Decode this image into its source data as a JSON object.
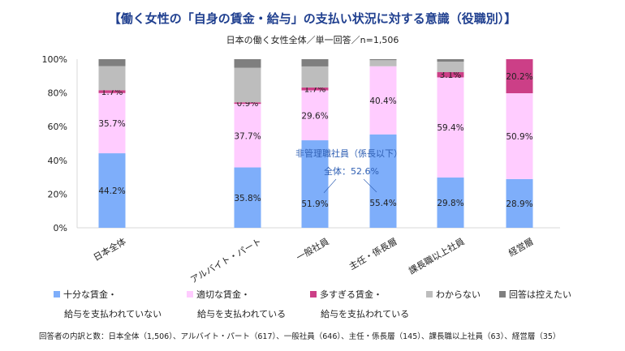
{
  "chart_data": {
    "type": "bar",
    "stacked": true,
    "title": "【働く女性の「自身の賃金・給与」の支払い状況に対する意識（役職別）】",
    "subtitle": "日本の働く女性全体／単一回答／n=1,506",
    "categories": [
      "日本全体",
      "アルバイト・パート",
      "一般社員",
      "主任・係長層",
      "課長職以上社員",
      "経営層"
    ],
    "ylim": [
      0,
      100
    ],
    "yticks": [
      "0%",
      "20%",
      "40%",
      "60%",
      "80%",
      "100%"
    ],
    "series": [
      {
        "name": "十分な賃金・給与を支払われていない",
        "legend_line1": "十分な賃金・",
        "legend_line2": "給与を支払われていない",
        "color": "#7eaefa",
        "values": [
          44.2,
          35.8,
          51.9,
          55.4,
          29.8,
          28.9
        ],
        "labels": [
          "44.2%",
          "35.8%",
          "51.9%",
          "55.4%",
          "29.8%",
          "28.9%"
        ]
      },
      {
        "name": "適切な賃金・給与を支払われている",
        "legend_line1": "適切な賃金・",
        "legend_line2": "給与を支払われている",
        "color": "#ffccff",
        "values": [
          35.7,
          37.7,
          29.6,
          40.4,
          59.4,
          50.9
        ],
        "labels": [
          "35.7%",
          "37.7%",
          "29.6%",
          "40.4%",
          "59.4%",
          "50.9%"
        ]
      },
      {
        "name": "多すぎる賃金・給与を支払われている",
        "legend_line1": "多すぎる賃金・",
        "legend_line2": "給与を支払われている",
        "color": "#cc3f87",
        "values": [
          1.7,
          0.9,
          1.7,
          0,
          3.1,
          20.2
        ],
        "labels": [
          "1.7%",
          "0.9%",
          "1.7%",
          "",
          "3.1%",
          "20.2%"
        ]
      },
      {
        "name": "わからない",
        "legend_line1": "わからない",
        "legend_line2": "",
        "color": "#bdbdbd",
        "values": [
          14.3,
          20.5,
          12.5,
          3.6,
          6.2,
          0
        ]
      },
      {
        "name": "回答は控えたい",
        "legend_line1": "回答は控えたい",
        "legend_line2": "",
        "color": "#7f7f7f",
        "values": [
          4.1,
          5.1,
          4.3,
          0.6,
          1.5,
          0
        ]
      }
    ],
    "annotation": {
      "line1": "非管理職社員（係長以下）",
      "line2": "全体：52.6%",
      "color": "#2f5fb3"
    },
    "legend_position": "bottom",
    "note": "回答者の内訳と数：日本全体（1,506）、アルバイト・パート（617）、一般社員（646）、主任・係長層（145）、課長職以上社員（63）、経営層（35）"
  }
}
